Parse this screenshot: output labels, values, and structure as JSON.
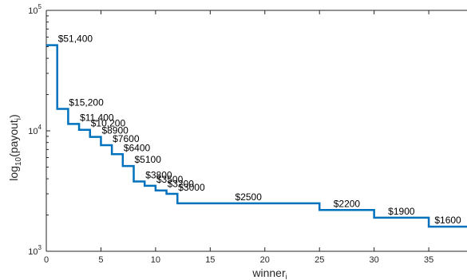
{
  "chart_data": {
    "type": "line",
    "style": "stairs",
    "title": "",
    "xlabel": {
      "main": "winner",
      "sub": "i"
    },
    "ylabel": {
      "pre": "log",
      "sub1": "10",
      "mid": "(payout",
      "sub2": "i",
      "post": ")"
    },
    "xlim": [
      0,
      38.5
    ],
    "ylim": [
      1000,
      100000
    ],
    "yscale": "log",
    "xticks": [
      0,
      5,
      10,
      15,
      20,
      25,
      30,
      35
    ],
    "yticks": [
      {
        "value": 1000,
        "base": "10",
        "exp": "3"
      },
      {
        "value": 10000,
        "base": "10",
        "exp": "4"
      },
      {
        "value": 100000,
        "base": "10",
        "exp": "5"
      }
    ],
    "grid": false,
    "line_color": "#0072bd",
    "series": [
      {
        "steps": [
          {
            "x_start": 0,
            "x_end": 1,
            "value": 51400,
            "label": "$51,400"
          },
          {
            "x_start": 1,
            "x_end": 2,
            "value": 15200,
            "label": "$15,200"
          },
          {
            "x_start": 2,
            "x_end": 3,
            "value": 11400,
            "label": "$11,400"
          },
          {
            "x_start": 3,
            "x_end": 4,
            "value": 10200,
            "label": "$10,200"
          },
          {
            "x_start": 4,
            "x_end": 5,
            "value": 8900,
            "label": "$8900"
          },
          {
            "x_start": 5,
            "x_end": 6,
            "value": 7600,
            "label": "$7600"
          },
          {
            "x_start": 6,
            "x_end": 7,
            "value": 6400,
            "label": "$6400"
          },
          {
            "x_start": 7,
            "x_end": 8,
            "value": 5100,
            "label": "$5100"
          },
          {
            "x_start": 8,
            "x_end": 9,
            "value": 3800,
            "label": "$3800"
          },
          {
            "x_start": 9,
            "x_end": 10,
            "value": 3500,
            "label": "$3500"
          },
          {
            "x_start": 10,
            "x_end": 11,
            "value": 3200,
            "label": "$3200"
          },
          {
            "x_start": 11,
            "x_end": 12,
            "value": 3000,
            "label": "$3000"
          },
          {
            "x_start": 12,
            "x_end": 25,
            "value": 2500,
            "label": "$2500"
          },
          {
            "x_start": 25,
            "x_end": 30,
            "value": 2200,
            "label": "$2200"
          },
          {
            "x_start": 30,
            "x_end": 35,
            "value": 1900,
            "label": "$1900"
          },
          {
            "x_start": 35,
            "x_end": 38.5,
            "value": 1600,
            "label": "$1600"
          }
        ]
      }
    ]
  }
}
